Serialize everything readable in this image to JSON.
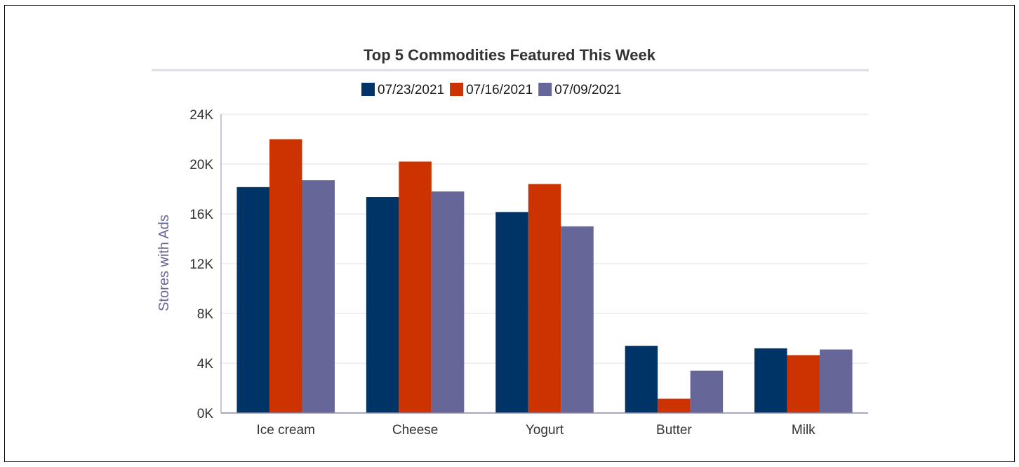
{
  "chart_data": {
    "type": "bar",
    "title": "Top 5 Commodities Featured This Week",
    "xlabel": "",
    "ylabel": "Stores with Ads",
    "categories": [
      "Ice cream",
      "Cheese",
      "Yogurt",
      "Butter",
      "Milk"
    ],
    "series": [
      {
        "name": "07/23/2021",
        "color": "#003366",
        "values": [
          18150,
          17350,
          16150,
          5400,
          5200
        ]
      },
      {
        "name": "07/16/2021",
        "color": "#cc3300",
        "values": [
          22000,
          20200,
          18400,
          1150,
          4650
        ]
      },
      {
        "name": "07/09/2021",
        "color": "#666699",
        "values": [
          18700,
          17800,
          15000,
          3400,
          5100
        ]
      }
    ],
    "ylim": [
      0,
      24000
    ],
    "yticks": [
      0,
      4000,
      8000,
      12000,
      16000,
      20000,
      24000
    ],
    "ytick_labels": [
      "0K",
      "4K",
      "8K",
      "12K",
      "16K",
      "20K",
      "24K"
    ],
    "grid": true,
    "legend_position": "top-center"
  }
}
